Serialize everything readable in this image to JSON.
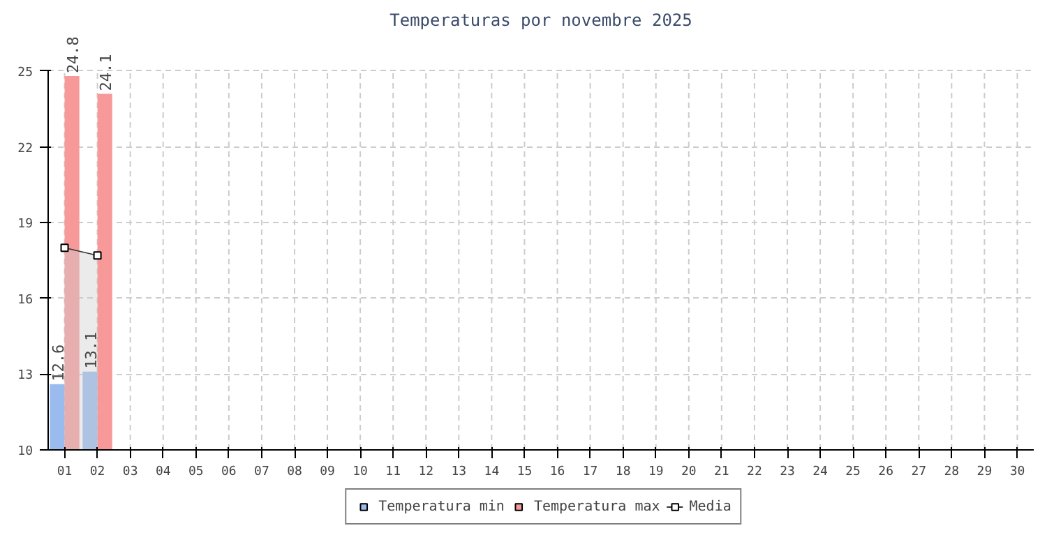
{
  "chart_data": {
    "type": "bar",
    "title": "Temperaturas por novembre 2025",
    "categories": [
      "01",
      "02",
      "03",
      "04",
      "05",
      "06",
      "07",
      "08",
      "09",
      "10",
      "11",
      "12",
      "13",
      "14",
      "15",
      "16",
      "17",
      "18",
      "19",
      "20",
      "21",
      "22",
      "23",
      "24",
      "25",
      "26",
      "27",
      "28",
      "29",
      "30"
    ],
    "series": [
      {
        "name": "Temperatura min",
        "color": "#99bbee",
        "values": [
          12.6,
          13.1,
          null,
          null,
          null,
          null,
          null,
          null,
          null,
          null,
          null,
          null,
          null,
          null,
          null,
          null,
          null,
          null,
          null,
          null,
          null,
          null,
          null,
          null,
          null,
          null,
          null,
          null,
          null,
          null
        ]
      },
      {
        "name": "Temperatura max",
        "color": "#f79999",
        "values": [
          24.8,
          24.1,
          null,
          null,
          null,
          null,
          null,
          null,
          null,
          null,
          null,
          null,
          null,
          null,
          null,
          null,
          null,
          null,
          null,
          null,
          null,
          null,
          null,
          null,
          null,
          null,
          null,
          null,
          null,
          null
        ]
      },
      {
        "name": "Media",
        "type": "area",
        "color": "#333333",
        "values": [
          18.0,
          17.7,
          null,
          null,
          null,
          null,
          null,
          null,
          null,
          null,
          null,
          null,
          null,
          null,
          null,
          null,
          null,
          null,
          null,
          null,
          null,
          null,
          null,
          null,
          null,
          null,
          null,
          null,
          null,
          null
        ]
      }
    ],
    "value_labels": [
      [
        "12.6",
        "13.1"
      ],
      [
        "24.8",
        "24.1"
      ],
      null
    ],
    "ylim": [
      10,
      25
    ],
    "yticks": [
      10,
      13,
      16,
      19,
      22,
      25
    ],
    "grid": true,
    "legend": "bottom",
    "marker": "square",
    "line_style": "solid"
  }
}
